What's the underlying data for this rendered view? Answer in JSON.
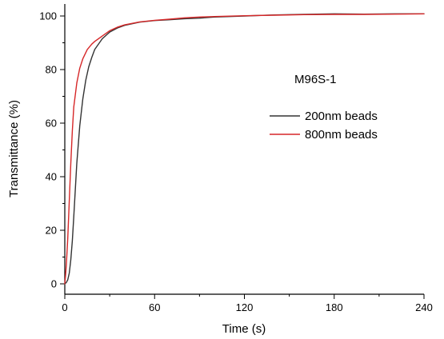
{
  "chart_data": {
    "type": "line",
    "title": "",
    "annotation": "M96S-1",
    "xlabel": "Time (s)",
    "ylabel": "Transmittance (%)",
    "xlim": [
      0,
      240
    ],
    "ylim": [
      0,
      105
    ],
    "xticks": [
      0,
      60,
      120,
      180,
      240
    ],
    "yticks": [
      0,
      20,
      40,
      60,
      80,
      100
    ],
    "grid": false,
    "legend_position": "right-middle",
    "series": [
      {
        "name": "200nm beads",
        "color": "#333333",
        "x": [
          0,
          1,
          2,
          3,
          4,
          5,
          6,
          7,
          8,
          10,
          12,
          14,
          16,
          18,
          20,
          25,
          30,
          35,
          40,
          50,
          60,
          70,
          80,
          90,
          100,
          120,
          140,
          160,
          180,
          200,
          220,
          240
        ],
        "y": [
          0,
          0.5,
          1.5,
          4,
          9,
          16,
          25,
          35,
          45,
          59,
          69,
          76,
          81,
          84.5,
          87.5,
          91.5,
          94,
          95.5,
          96.5,
          97.7,
          98.3,
          98.6,
          99,
          99.2,
          99.6,
          100,
          100.4,
          100.6,
          100.8,
          100.7,
          100.8,
          100.8
        ]
      },
      {
        "name": "800nm beads",
        "color": "#d62728",
        "x": [
          0,
          0.5,
          1,
          2,
          3,
          4,
          5,
          6,
          8,
          10,
          12,
          15,
          18,
          20,
          25,
          30,
          35,
          40,
          50,
          60,
          70,
          80,
          90,
          100,
          120,
          140,
          160,
          180,
          200,
          220,
          240
        ],
        "y": [
          0,
          3,
          7,
          17,
          31,
          45,
          57,
          66,
          75,
          80.5,
          84,
          87.5,
          89.5,
          90.5,
          92.5,
          94.5,
          95.8,
          96.7,
          97.8,
          98.4,
          98.8,
          99.3,
          99.6,
          99.8,
          100.1,
          100.3,
          100.5,
          100.6,
          100.6,
          100.7,
          100.8
        ]
      }
    ]
  }
}
